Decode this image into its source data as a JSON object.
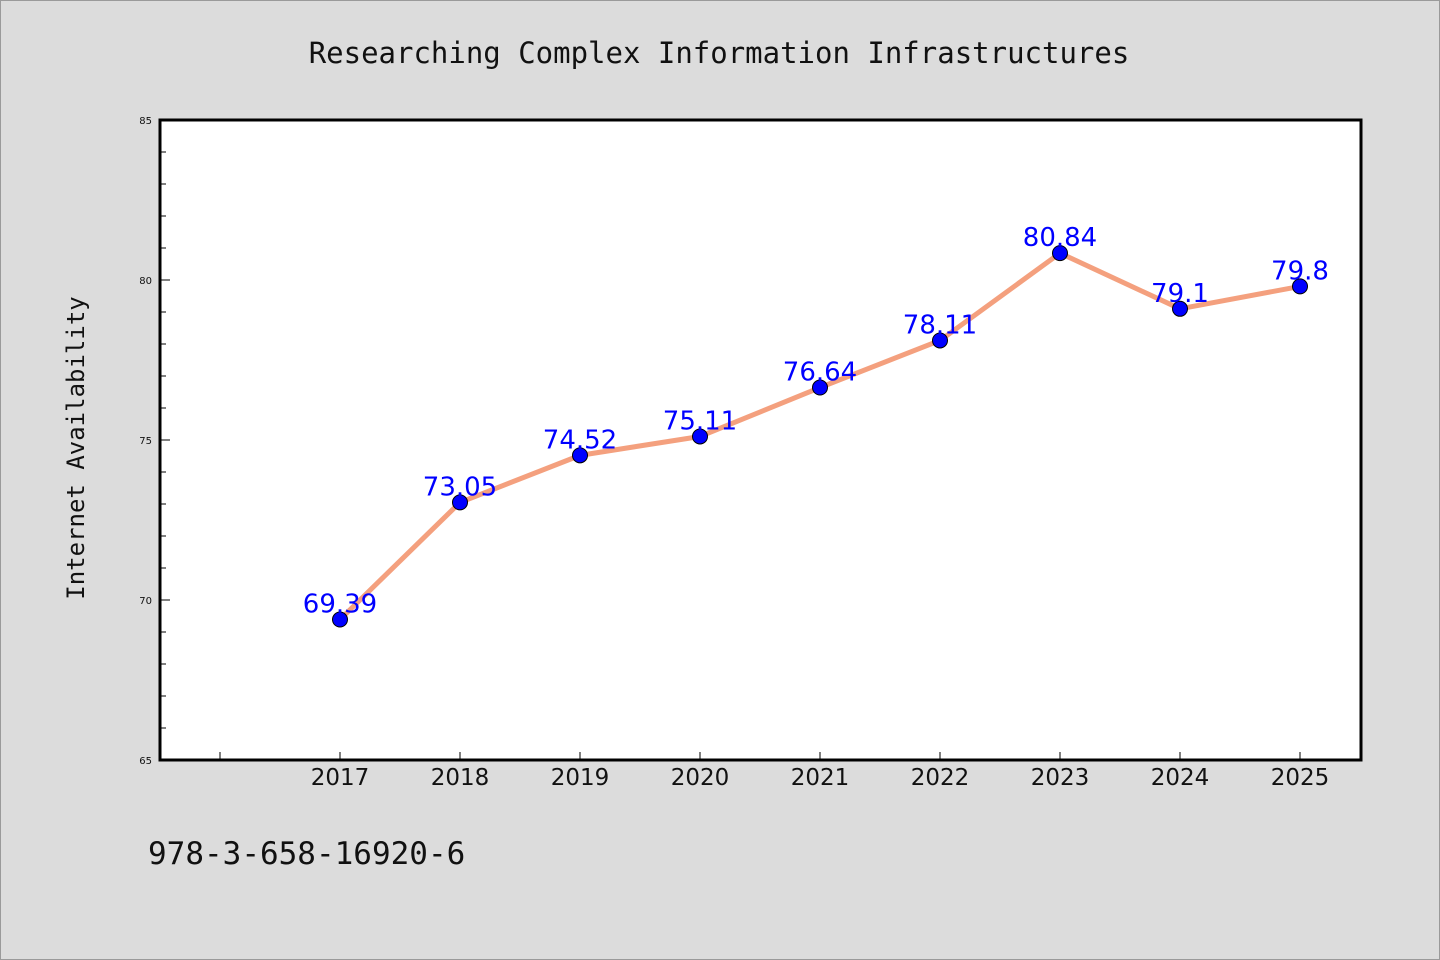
{
  "chart_data": {
    "type": "line",
    "title": "Researching Complex Information Infrastructures",
    "xlabel": "",
    "ylabel": "Internet Availability",
    "categories": [
      "2017",
      "2018",
      "2019",
      "2020",
      "2021",
      "2022",
      "2023",
      "2024",
      "2025"
    ],
    "series": [
      {
        "values": [
          69.39,
          73.05,
          74.52,
          75.11,
          76.64,
          78.11,
          80.84,
          79.1,
          79.8
        ]
      }
    ],
    "data_labels": [
      "69.39",
      "73.05",
      "74.52",
      "75.11",
      "76.64",
      "78.11",
      "80.84",
      "79.1",
      "79.8"
    ],
    "ylim": [
      65,
      85
    ],
    "yticks": [
      "65",
      "70",
      "75",
      "80",
      "85"
    ],
    "grid": false,
    "legend": "none",
    "line_color": "#f4a07e",
    "marker_color": "#0000ff",
    "label_color": "#0000ff"
  },
  "footer": {
    "isbn": "978-3-658-16920-6"
  }
}
